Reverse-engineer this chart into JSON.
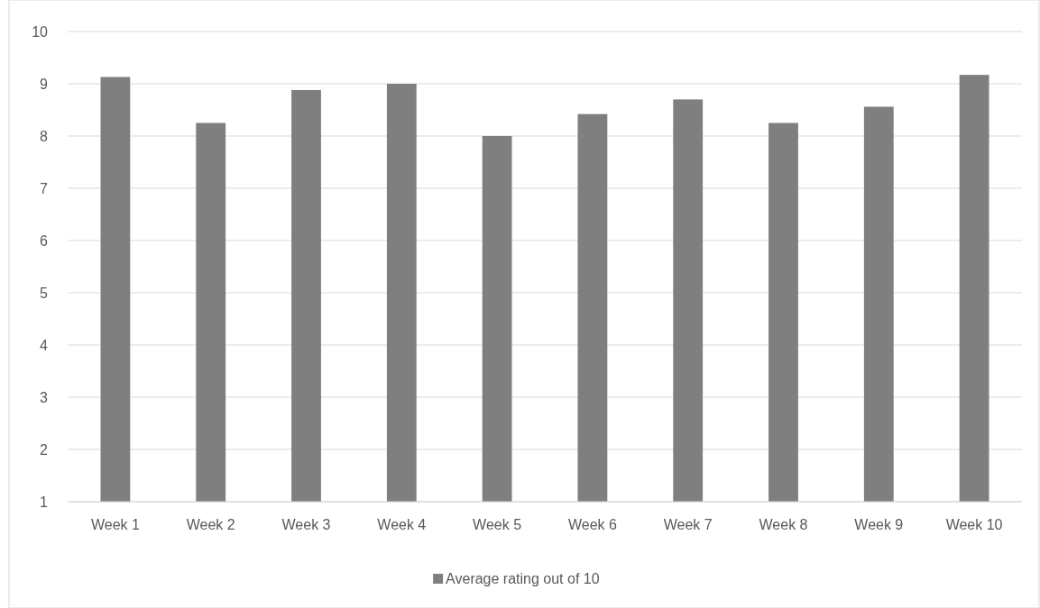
{
  "chart_data": {
    "type": "bar",
    "categories": [
      "Week 1",
      "Week 2",
      "Week 3",
      "Week 4",
      "Week 5",
      "Week 6",
      "Week 7",
      "Week 8",
      "Week 9",
      "Week 10"
    ],
    "series": [
      {
        "name": "Average rating out of 10",
        "color": "#7f7f7f",
        "values": [
          9.13,
          8.25,
          8.88,
          9.0,
          8.0,
          8.42,
          8.7,
          8.25,
          8.56,
          9.17
        ]
      }
    ],
    "ylim": [
      1,
      10
    ],
    "yticks": [
      1,
      2,
      3,
      4,
      5,
      6,
      7,
      8,
      9,
      10
    ],
    "grid": "y",
    "legend": "bottom"
  }
}
